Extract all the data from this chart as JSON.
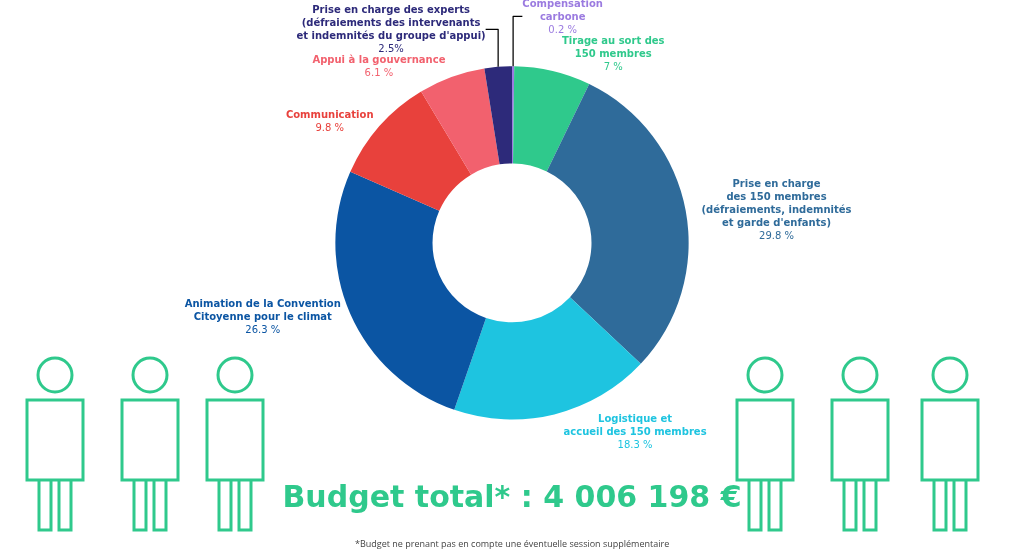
{
  "chart_data": {
    "type": "donut",
    "title": "Budget total* : 4 006 198 €",
    "categories": [
      "Compensation\ncarbone",
      "Tirage au sort des\n150 membres",
      "Prise en charge\ndes 150 membres\n(défraiements, indemnités\net garde d'enfants)",
      "Logistique et\naccueil des 150 membres",
      "Animation de la Convention\nCitoyenne pour le climat",
      "Communication",
      "Appui à la gouvernance",
      "Prise en charge des experts\n(défraiements des intervenants\net indemnités du groupe d'appui)"
    ],
    "values": [
      0.2,
      7,
      29.8,
      18.3,
      26.3,
      9.8,
      6.1,
      2.5
    ],
    "value_labels": [
      "0.2 %",
      "7 %",
      "29.8 %",
      "18.3 %",
      "26.3 %",
      "9.8 %",
      "6.1 %",
      "2.5%"
    ],
    "colors": [
      "#9b7be0",
      "#2fc98c",
      "#2f6b9a",
      "#1ec4e0",
      "#0b55a3",
      "#e8413c",
      "#f2616e",
      "#2d2a7a"
    ],
    "annotations": [
      "*Budget ne prenant pas en compte une éventuelle session supplémentaire"
    ],
    "legend": false
  }
}
